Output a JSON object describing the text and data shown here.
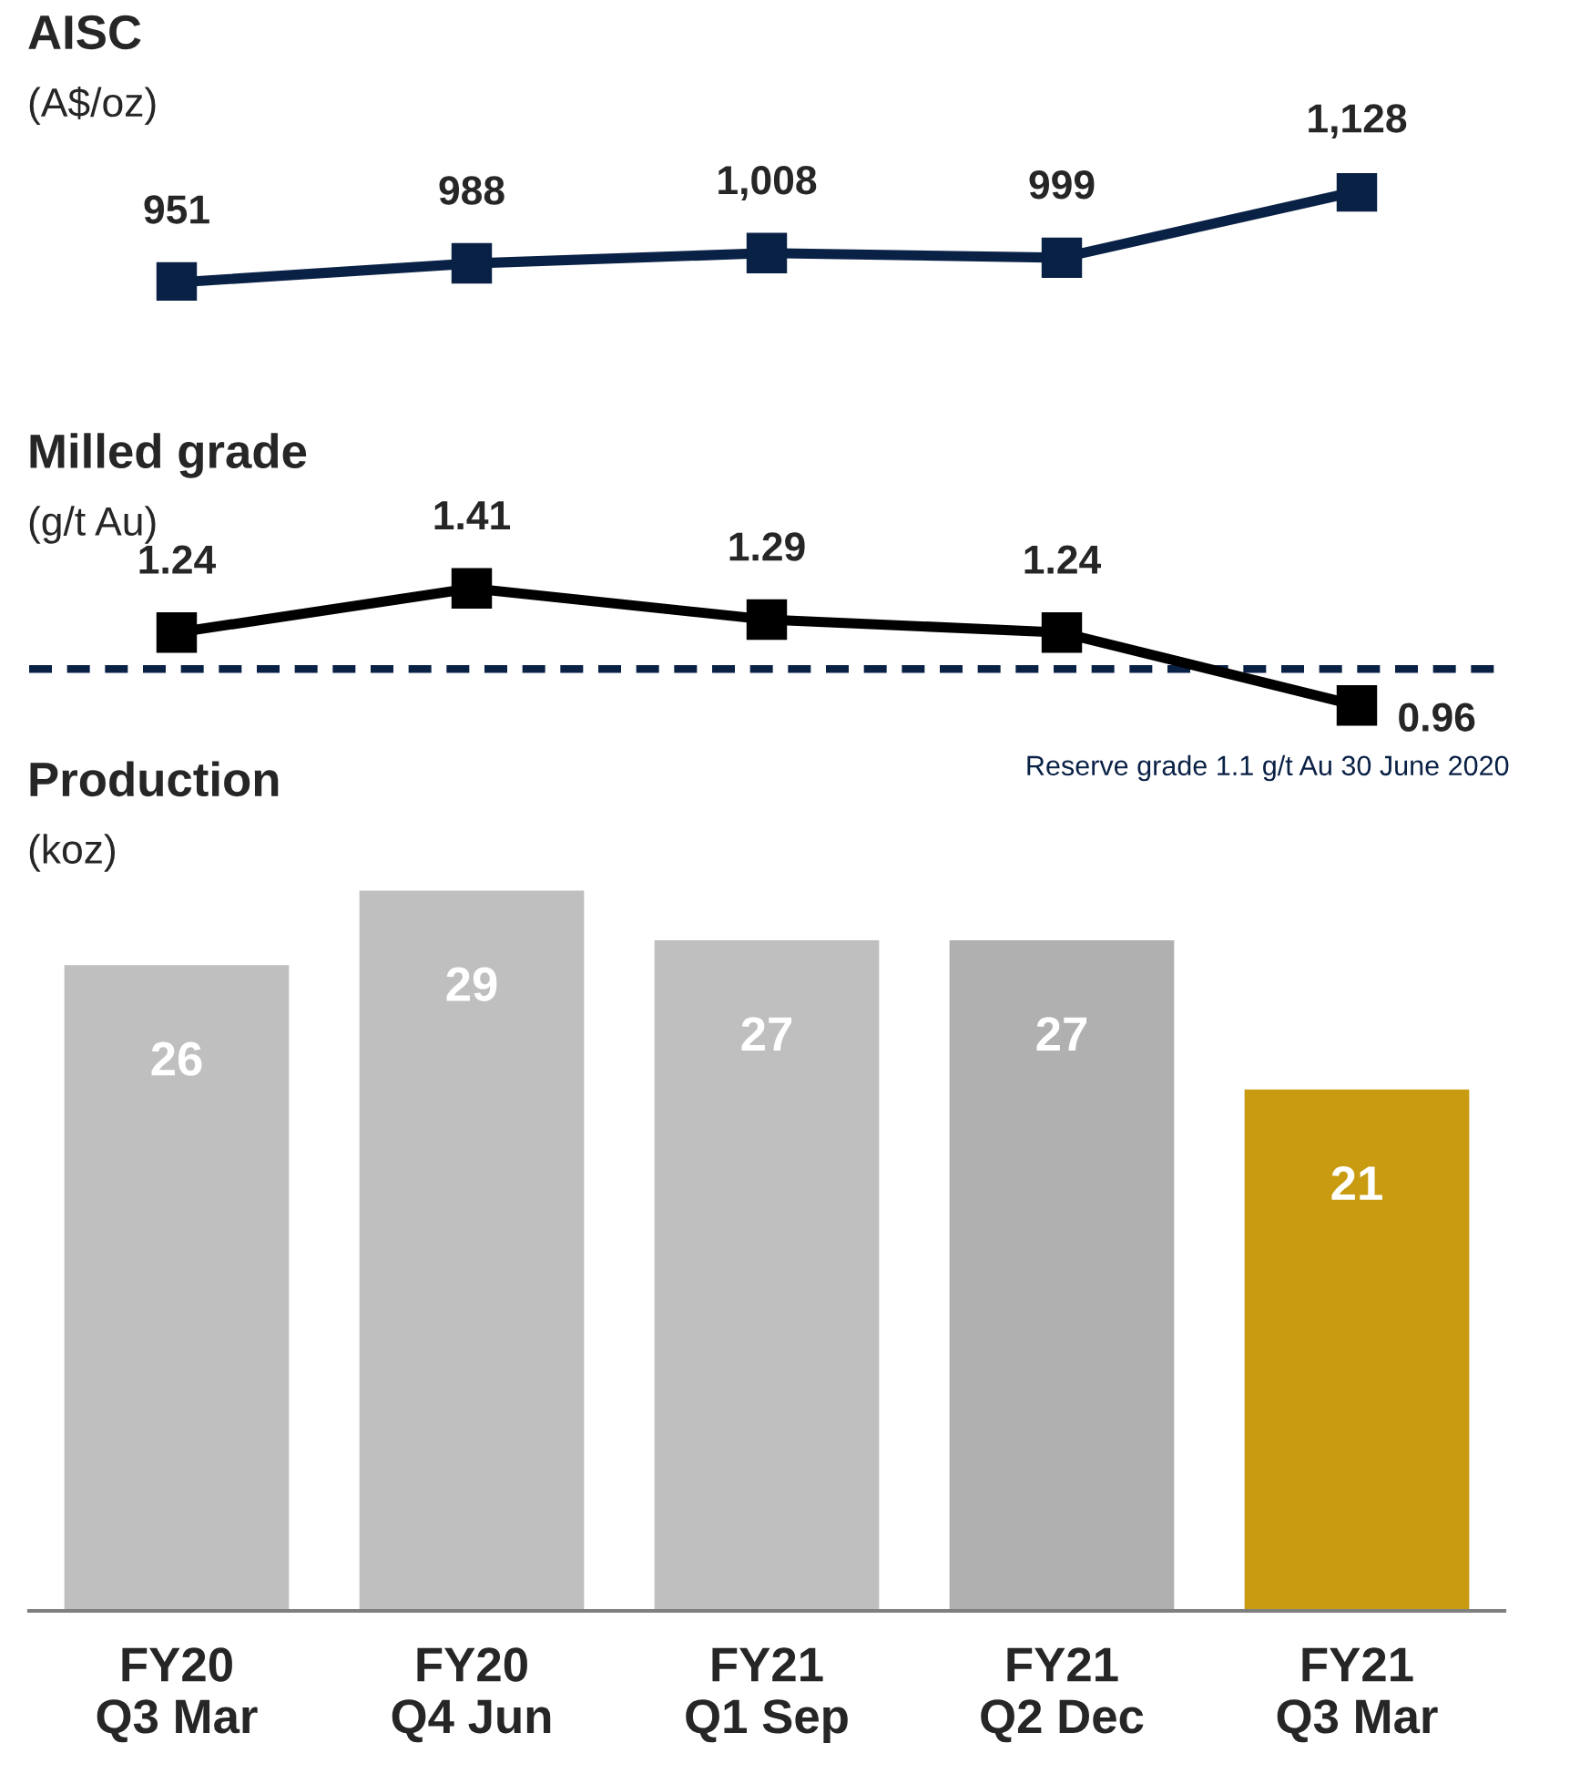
{
  "chart_data": [
    {
      "type": "line",
      "title": "AISC",
      "subtitle": "(A$/oz)",
      "series": [
        {
          "color": "#0a2146",
          "values": [
            951,
            988,
            1008,
            999,
            1128
          ],
          "value_labels": [
            "951",
            "988",
            "1,008",
            "999",
            "1,128"
          ]
        }
      ],
      "marker": "square",
      "line_style": "solid",
      "tick_labels": false,
      "grid": false,
      "legend": false
    },
    {
      "type": "line",
      "title": "Milled grade",
      "subtitle": "(g/t Au)",
      "series": [
        {
          "color": "#000000",
          "values": [
            1.24,
            1.41,
            1.29,
            1.24,
            0.96
          ]
        }
      ],
      "ref_lines": [
        {
          "axis": "y",
          "value": 1.1,
          "label": "Reserve grade 1.1 g/t Au 30 June 2020",
          "color": "#0a2146",
          "line_style": "dashed"
        }
      ],
      "marker": "square",
      "line_style": "solid",
      "data_labels": true,
      "tick_labels": false,
      "grid": false,
      "legend": false
    },
    {
      "type": "bar",
      "title": "Production",
      "subtitle": "(koz)",
      "categories": [
        "FY20\nQ3 Mar",
        "FY20\nQ4 Jun",
        "FY21\nQ1 Sep",
        "FY21\nQ2 Dec",
        "FY21\nQ3 Mar"
      ],
      "values": [
        26,
        29,
        27,
        27,
        21
      ],
      "colors": [
        "#bfbfbf",
        "#bfbfbf",
        "#bfbfbf",
        "#b0b0b0",
        "#c89b10"
      ],
      "data_labels": true,
      "tick_labels": "x",
      "grid": false,
      "legend": false
    }
  ]
}
